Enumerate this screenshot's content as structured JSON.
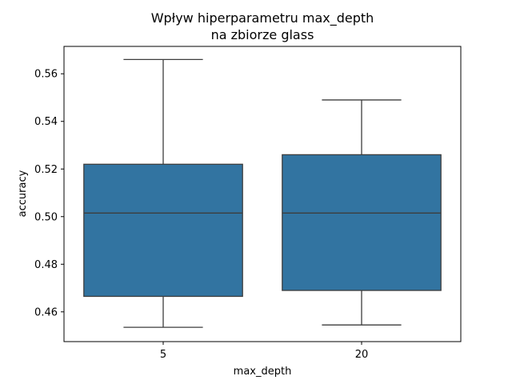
{
  "chart_data": {
    "type": "box",
    "title_line1": "Wpływ hiperparametru max_depth",
    "title_line2": "na zbiorze glass",
    "xlabel": "max_depth",
    "ylabel": "accuracy",
    "ylim": [
      0.4475,
      0.5715
    ],
    "yticks": [
      0.46,
      0.48,
      0.5,
      0.52,
      0.54,
      0.56
    ],
    "ytick_labels": [
      "0.46",
      "0.48",
      "0.50",
      "0.52",
      "0.54",
      "0.56"
    ],
    "categories": [
      "5",
      "20"
    ],
    "box_color": "#3274a1",
    "line_color": "#3d3d3d",
    "boxes": [
      {
        "category": "5",
        "whisker_low": 0.4535,
        "q1": 0.4665,
        "median": 0.5015,
        "q3": 0.522,
        "whisker_high": 0.566
      },
      {
        "category": "20",
        "whisker_low": 0.4545,
        "q1": 0.469,
        "median": 0.5015,
        "q3": 0.526,
        "whisker_high": 0.549
      }
    ],
    "grid": false
  }
}
